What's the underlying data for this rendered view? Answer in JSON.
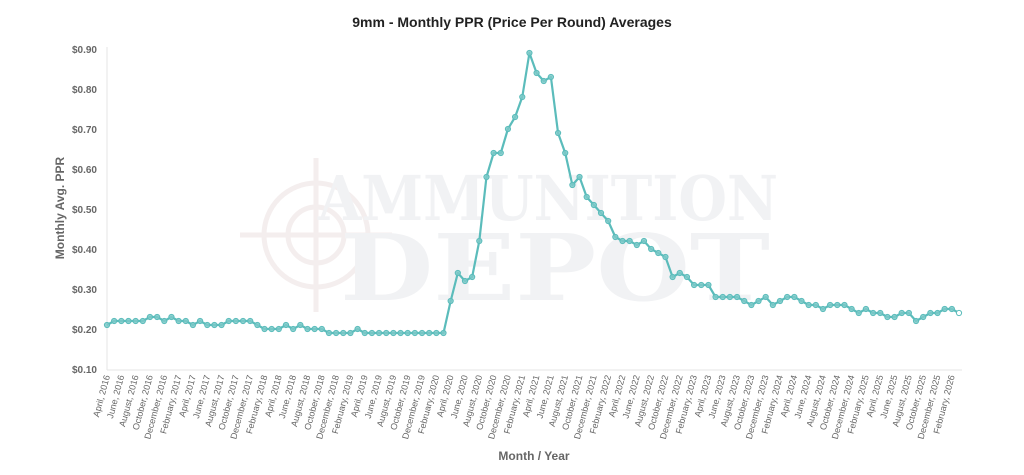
{
  "chart_data": {
    "type": "line",
    "title": "9mm - Monthly PPR (Price Per Round) Averages",
    "xlabel": "Month / Year",
    "ylabel": "Monthly Avg. PPR",
    "ylim": [
      0.1,
      0.9
    ],
    "y_ticks": [
      "$0.10",
      "$0.20",
      "$0.30",
      "$0.40",
      "$0.50",
      "$0.60",
      "$0.70",
      "$0.80",
      "$0.90"
    ],
    "y_tick_values": [
      0.1,
      0.2,
      0.3,
      0.4,
      0.5,
      0.6,
      0.7,
      0.8,
      0.9
    ],
    "grid": false,
    "legend": "none",
    "line_color": "#5bbcbb",
    "watermark_text": [
      "AMMUNITION",
      "DEPOT"
    ],
    "x_tick_labels": [
      "April, 2016",
      "June, 2016",
      "August, 2016",
      "October, 2016",
      "December, 2016",
      "February, 2017",
      "April, 2017",
      "June, 2017",
      "August, 2017",
      "October, 2017",
      "December, 2017",
      "February, 2018",
      "April, 2018",
      "June, 2018",
      "August, 2018",
      "October, 2018",
      "December, 2018",
      "February, 2019",
      "April, 2019",
      "June, 2019",
      "August, 2019",
      "October, 2019",
      "December, 2019",
      "February, 2020",
      "April, 2020",
      "June, 2020",
      "August, 2020",
      "October, 2020",
      "December, 2020",
      "February, 2021",
      "April, 2021",
      "June, 2021",
      "August, 2021",
      "October, 2021",
      "December, 2021",
      "February, 2022",
      "April, 2022",
      "June, 2022",
      "August, 2022",
      "October, 2022",
      "December, 2022",
      "February, 2023",
      "April, 2023",
      "June, 2023",
      "August, 2023",
      "October, 2023",
      "December, 2023",
      "February, 2024",
      "April, 2024",
      "June, 2024",
      "August, 2024",
      "October, 2024",
      "December, 2024",
      "February, 2025",
      "April, 2025",
      "June, 2025",
      "August, 2025",
      "October, 2025",
      "December, 2025",
      "February, 2026"
    ],
    "values": [
      0.21,
      0.22,
      0.22,
      0.22,
      0.22,
      0.22,
      0.23,
      0.23,
      0.22,
      0.23,
      0.22,
      0.22,
      0.21,
      0.22,
      0.21,
      0.21,
      0.21,
      0.22,
      0.22,
      0.22,
      0.22,
      0.21,
      0.2,
      0.2,
      0.2,
      0.21,
      0.2,
      0.21,
      0.2,
      0.2,
      0.2,
      0.19,
      0.19,
      0.19,
      0.19,
      0.2,
      0.19,
      0.19,
      0.19,
      0.19,
      0.19,
      0.19,
      0.19,
      0.19,
      0.19,
      0.19,
      0.19,
      0.19,
      0.27,
      0.34,
      0.32,
      0.33,
      0.42,
      0.58,
      0.64,
      0.64,
      0.7,
      0.73,
      0.78,
      0.89,
      0.84,
      0.82,
      0.83,
      0.69,
      0.64,
      0.56,
      0.58,
      0.53,
      0.51,
      0.49,
      0.47,
      0.43,
      0.42,
      0.42,
      0.41,
      0.42,
      0.4,
      0.39,
      0.38,
      0.33,
      0.34,
      0.33,
      0.31,
      0.31,
      0.31,
      0.28,
      0.28,
      0.28,
      0.28,
      0.27,
      0.26,
      0.27,
      0.28,
      0.26,
      0.27,
      0.28,
      0.28,
      0.27,
      0.26,
      0.26,
      0.25,
      0.26,
      0.26,
      0.26,
      0.25,
      0.24,
      0.25,
      0.24,
      0.24,
      0.23,
      0.23,
      0.24,
      0.24,
      0.22,
      0.23,
      0.24,
      0.24,
      0.25,
      0.25,
      0.24
    ]
  }
}
